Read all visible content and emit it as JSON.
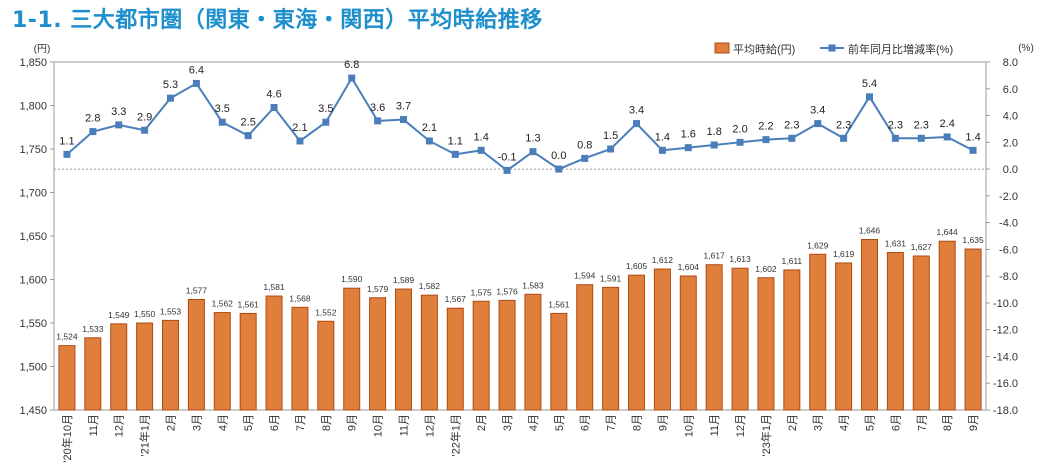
{
  "title": "1-1. 三大都市圏（関東・東海・関西）平均時給推移",
  "chart_data": {
    "type": "bar+line",
    "categories": [
      "'20年10月",
      "11月",
      "12月",
      "'21年1月",
      "2月",
      "3月",
      "4月",
      "5月",
      "6月",
      "7月",
      "8月",
      "9月",
      "10月",
      "11月",
      "12月",
      "'22年1月",
      "2月",
      "3月",
      "4月",
      "5月",
      "6月",
      "7月",
      "8月",
      "9月",
      "10月",
      "11月",
      "12月",
      "'23年1月",
      "2月",
      "3月",
      "4月",
      "5月",
      "6月",
      "7月",
      "8月",
      "9月"
    ],
    "series": [
      {
        "name": "平均時給(円)",
        "type": "bar",
        "axis": "left",
        "color": "#e07f3c",
        "values": [
          1524,
          1533,
          1549,
          1550,
          1553,
          1577,
          1562,
          1561,
          1581,
          1568,
          1552,
          1590,
          1579,
          1589,
          1582,
          1567,
          1575,
          1576,
          1583,
          1561,
          1594,
          1591,
          1605,
          1612,
          1604,
          1617,
          1613,
          1602,
          1611,
          1629,
          1619,
          1646,
          1631,
          1627,
          1644,
          1635
        ]
      },
      {
        "name": "前年同月比増減率(%)",
        "type": "line",
        "axis": "right",
        "color": "#4a7ebb",
        "values": [
          1.1,
          2.8,
          3.3,
          2.9,
          5.3,
          6.4,
          3.5,
          2.5,
          4.6,
          2.1,
          3.5,
          6.8,
          3.6,
          3.7,
          2.1,
          1.1,
          1.4,
          -0.1,
          1.3,
          0.0,
          0.8,
          1.5,
          3.4,
          1.4,
          1.6,
          1.8,
          2.0,
          2.2,
          2.3,
          3.4,
          2.3,
          5.4,
          2.3,
          2.3,
          2.4,
          1.4
        ],
        "labels": [
          "1.1",
          "2.8",
          "3.3",
          "2.9",
          "5.3",
          "6.4",
          "3.5",
          "2.5",
          "4.6",
          "2.1",
          "3.5",
          "6.8",
          "3.6",
          "3.7",
          "2.1",
          "1.1",
          "1.4",
          "-0.1",
          "1.3",
          "0.0",
          "0.8",
          "1.5",
          "3.4",
          "1.4",
          "1.6",
          "1.8",
          "2.0",
          "2.2",
          "2.3",
          "3.4",
          "2.3",
          "5.4",
          "2.3",
          "2.3",
          "2.4",
          "1.4"
        ]
      }
    ],
    "left_axis": {
      "unit": "(円)",
      "min": 1450,
      "max": 1850,
      "ticks": [
        "1,450",
        "1,500",
        "1,550",
        "1,600",
        "1,650",
        "1,700",
        "1,750",
        "1,800",
        "1,850"
      ]
    },
    "right_axis": {
      "unit": "(%)",
      "min": -18,
      "max": 8,
      "ticks": [
        "-18.0",
        "-16.0",
        "-14.0",
        "-12.0",
        "-10.0",
        "-8.0",
        "-6.0",
        "-4.0",
        "-2.0",
        "0.0",
        "2.0",
        "4.0",
        "6.0",
        "8.0"
      ]
    },
    "legend_position": "top-right",
    "zero_line": "dashed"
  }
}
